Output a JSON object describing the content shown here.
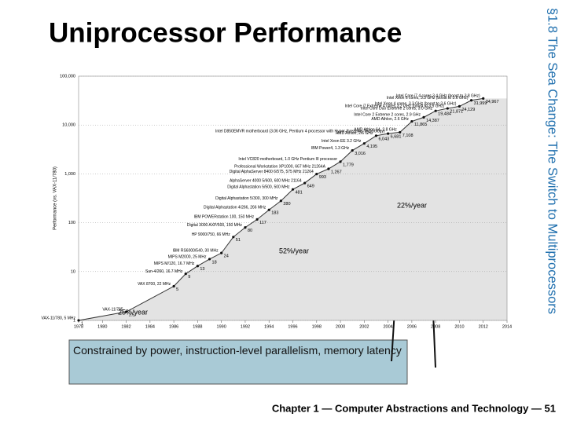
{
  "slide": {
    "title": "Uniprocessor Performance",
    "side_label": "§1.8 The Sea Change: The Switch to Multiprocessors",
    "callout": "Constrained by power, instruction-level parallelism, memory latency",
    "footer": "Chapter 1 — Computer Abstractions and Technology — 51"
  },
  "chart_data": {
    "type": "line",
    "log_scale_y": true,
    "color": "#333333",
    "area_color": "#e3e3e3",
    "y_label": "Performance (vs. VAX-11/780)",
    "x": [
      1978,
      1982,
      1986,
      1987,
      1988,
      1989,
      1990,
      1991,
      1992,
      1993,
      1994,
      1995,
      1996,
      1997,
      1998,
      1999,
      2000,
      2001,
      2002,
      2003,
      2004,
      2005,
      2006,
      2007,
      2008,
      2009,
      2010,
      2011,
      2012
    ],
    "values": [
      1,
      1.5,
      5,
      9,
      13,
      18,
      24,
      51,
      80,
      117,
      183,
      280,
      481,
      649,
      993,
      1267,
      1779,
      3016,
      4195,
      6043,
      6681,
      7108,
      11865,
      14387,
      19484,
      21871,
      24129,
      31999,
      34967
    ],
    "value_labels": [
      "1",
      "1.5",
      "5",
      "9",
      "13",
      "18",
      "24",
      "51",
      "80",
      "117",
      "183",
      "280",
      "481",
      "649",
      "993",
      "1,267",
      "1,779",
      "3,016",
      "4,195",
      "6,043",
      "6,681",
      "7,108",
      "11,865",
      "14,387",
      "19,484",
      "21,871",
      "24,129",
      "31,999",
      "34,967"
    ],
    "machines": [
      "VAX-11/780, 5 MHz",
      "VAX-11/785",
      "VAX 8700, 22 MHz",
      "Sun-4/260, 16.7 MHz",
      "MIPS M/120, 16.7 MHz",
      "MIPS M2000, 25 MHz",
      "IBM RS6000/540, 30 MHz",
      "HP 9000/750, 66 MHz",
      "Digital 3000 AXP/500, 150 MHz",
      "IBM POWERstation 100, 150 MHz",
      "Digital Alphastation 4/266, 266 MHz",
      "Digital Alphastation 5/300, 300 MHz",
      "Digital Alphastation 5/500, 500 MHz",
      "AlphaServer 4000 5/600, 600 MHz 21164",
      "Digital AlphaServer 8400 6/575, 575 MHz 21264",
      "Professional Workstation XP1000, 667 MHz 21264A",
      "Intel VC820 motherboard, 1.0 GHz Pentium III processor",
      "IBM Power4, 1.3 GHz",
      "Intel Xeon EE 3.2 GHz",
      "AMD Athlon, 2.6 GHz",
      "Intel D850EMVR motherboard (3.06 GHz, Pentium 4 processor with Hyper-threading Technology)",
      "AMD Athlon 64, 2.8 GHz",
      "AMD Athlon, 2.6 GHz",
      "Intel Core 2 Extreme 2 cores, 2.9 GHz",
      "Intel Core Duo Extreme 2 cores, 3.0 GHz",
      "Intel Core i7 Extreme 4 cores 3.2 GHz (boost to 3.5 GHz)",
      "Intel Xeon 4 cores, 3.3 GHz (boost to 3.6 GHz)",
      "Intel Xeon 6 cores, 3.3 GHz (boost to 3.6 GHz)",
      "Intel Core i7 4 cores 3.4 GHz (boost to 3.8 GHz)"
    ],
    "annotations": [
      "25%/year",
      "52%/year",
      "22%/year"
    ],
    "xlim": [
      1978,
      2014
    ],
    "xticks": [
      1978,
      1980,
      1982,
      1984,
      1986,
      1988,
      1990,
      1992,
      1994,
      1996,
      1998,
      2000,
      2002,
      2004,
      2006,
      2008,
      2010,
      2012,
      2014
    ],
    "ylim": [
      1,
      100000
    ],
    "yticks": [
      1,
      10,
      100,
      {
        "value": 1000,
        "label": "1,000"
      },
      {
        "value": 10000,
        "label": "10,000"
      },
      {
        "value": 100000,
        "label": "100,000"
      }
    ],
    "grid": true
  }
}
